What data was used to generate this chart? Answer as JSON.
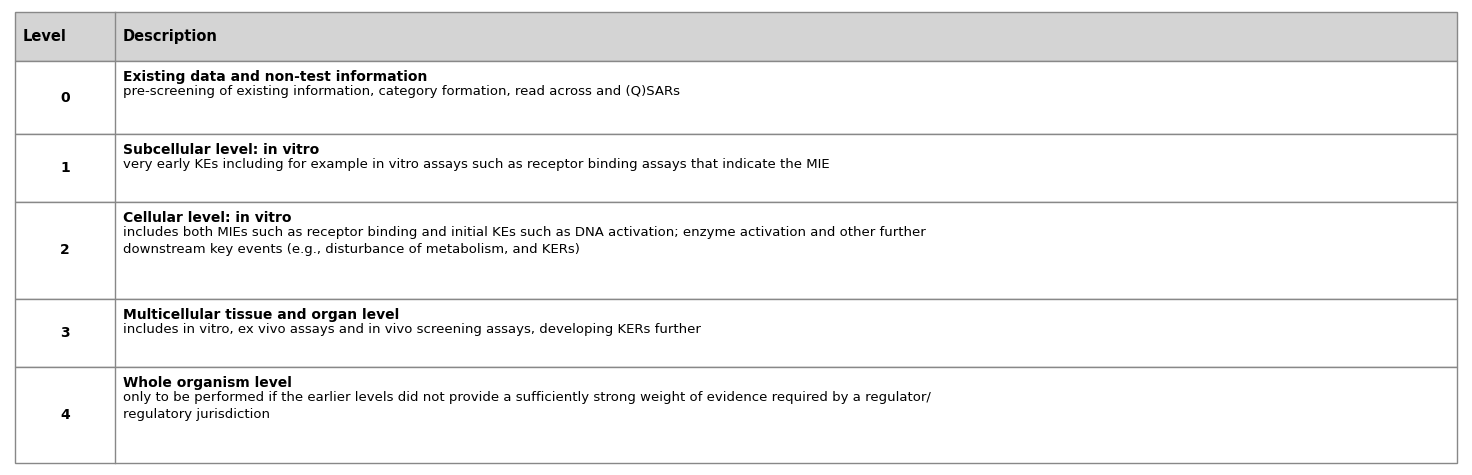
{
  "header": [
    "Level",
    "Description"
  ],
  "rows": [
    {
      "level": "0",
      "title": "Existing data and non-test information",
      "description": "pre-screening of existing information, category formation, read across and (Q)SARs"
    },
    {
      "level": "1",
      "title": "Subcellular level: in vitro",
      "description": "very early KEs including for example in vitro assays such as receptor binding assays that indicate the MIE"
    },
    {
      "level": "2",
      "title": "Cellular level: in vitro",
      "description": "includes both MIEs such as receptor binding and initial KEs such as DNA activation; enzyme activation and other further\ndownstream key events (e.g., disturbance of metabolism, and KERs)"
    },
    {
      "level": "3",
      "title": "Multicellular tissue and organ level",
      "description": "includes in vitro, ex vivo assays and in vivo screening assays, developing KERs further"
    },
    {
      "level": "4",
      "title": "Whole organism level",
      "description": "only to be performed if the earlier levels did not provide a sufficiently strong weight of evidence required by a regulator/\nregulatory jurisdiction"
    }
  ],
  "header_bg": "#d4d4d4",
  "row_bg": "#ffffff",
  "border_color": "#888888",
  "text_color": "#000000",
  "fig_width": 14.72,
  "fig_height": 4.75,
  "dpi": 100
}
